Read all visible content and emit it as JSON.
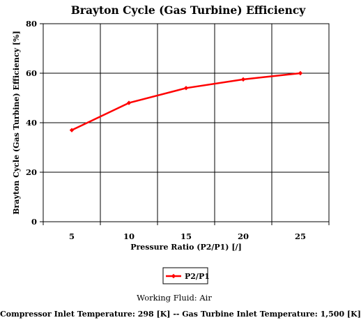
{
  "chart_data": {
    "type": "line",
    "title": "Brayton Cycle (Gas Turbine) Efficiency",
    "xlabel": "Pressure Ratio (P2/P1) [/]",
    "ylabel": "Brayton Cycle (Gas Turbine) Efficiency [%]",
    "x_ticks": [
      "5",
      "10",
      "15",
      "20",
      "25"
    ],
    "y_ticks": [
      "0",
      "20",
      "40",
      "60",
      "80"
    ],
    "xlim": [
      2.5,
      27.5
    ],
    "ylim": [
      0,
      80
    ],
    "grid": true,
    "legend_position": "bottom",
    "series": [
      {
        "name": "P2/P1",
        "color": "#ff0000",
        "marker": "diamond",
        "x": [
          5,
          10,
          15,
          20,
          25
        ],
        "y": [
          37.0,
          48.0,
          54.0,
          57.5,
          60.0
        ]
      }
    ]
  },
  "footnotes": {
    "working_fluid": "Working Fluid:  Air",
    "temperatures": "Compressor Inlet Temperature:  298 [K]  --  Gas Turbine Inlet Temperature:  1,500 [K]"
  }
}
